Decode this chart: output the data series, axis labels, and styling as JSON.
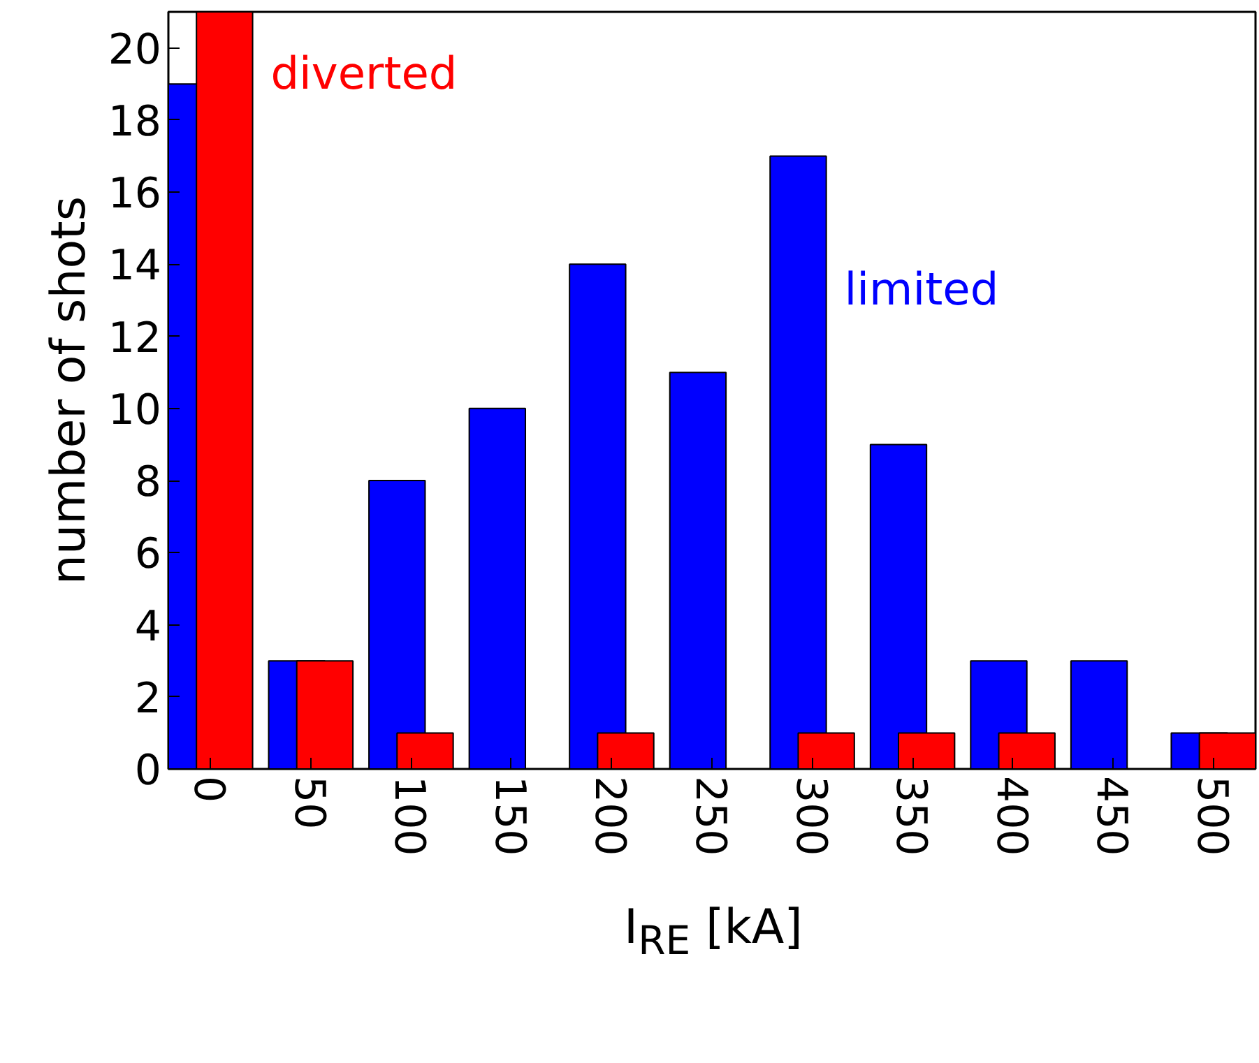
{
  "chart_data": {
    "type": "bar",
    "x": [
      0,
      50,
      100,
      150,
      200,
      250,
      300,
      350,
      400,
      450,
      500
    ],
    "series": [
      {
        "name": "limited",
        "color": "#0000ff",
        "values": [
          19,
          3,
          8,
          10,
          14,
          11,
          17,
          9,
          3,
          3,
          1
        ]
      },
      {
        "name": "diverted",
        "color": "#ff0000",
        "values": [
          21,
          3,
          1,
          null,
          1,
          null,
          1,
          1,
          1,
          null,
          1
        ]
      }
    ],
    "xlabel": "I$_{RE}$ [kA]",
    "ylabel": "number of shots",
    "xlim": [
      -21,
      521
    ],
    "ylim": [
      0,
      21
    ],
    "xticks": [
      0,
      50,
      100,
      150,
      200,
      250,
      300,
      350,
      400,
      450,
      500
    ],
    "yticks": [
      0,
      2,
      4,
      6,
      8,
      10,
      12,
      14,
      16,
      18,
      20
    ],
    "grid": false
  }
}
